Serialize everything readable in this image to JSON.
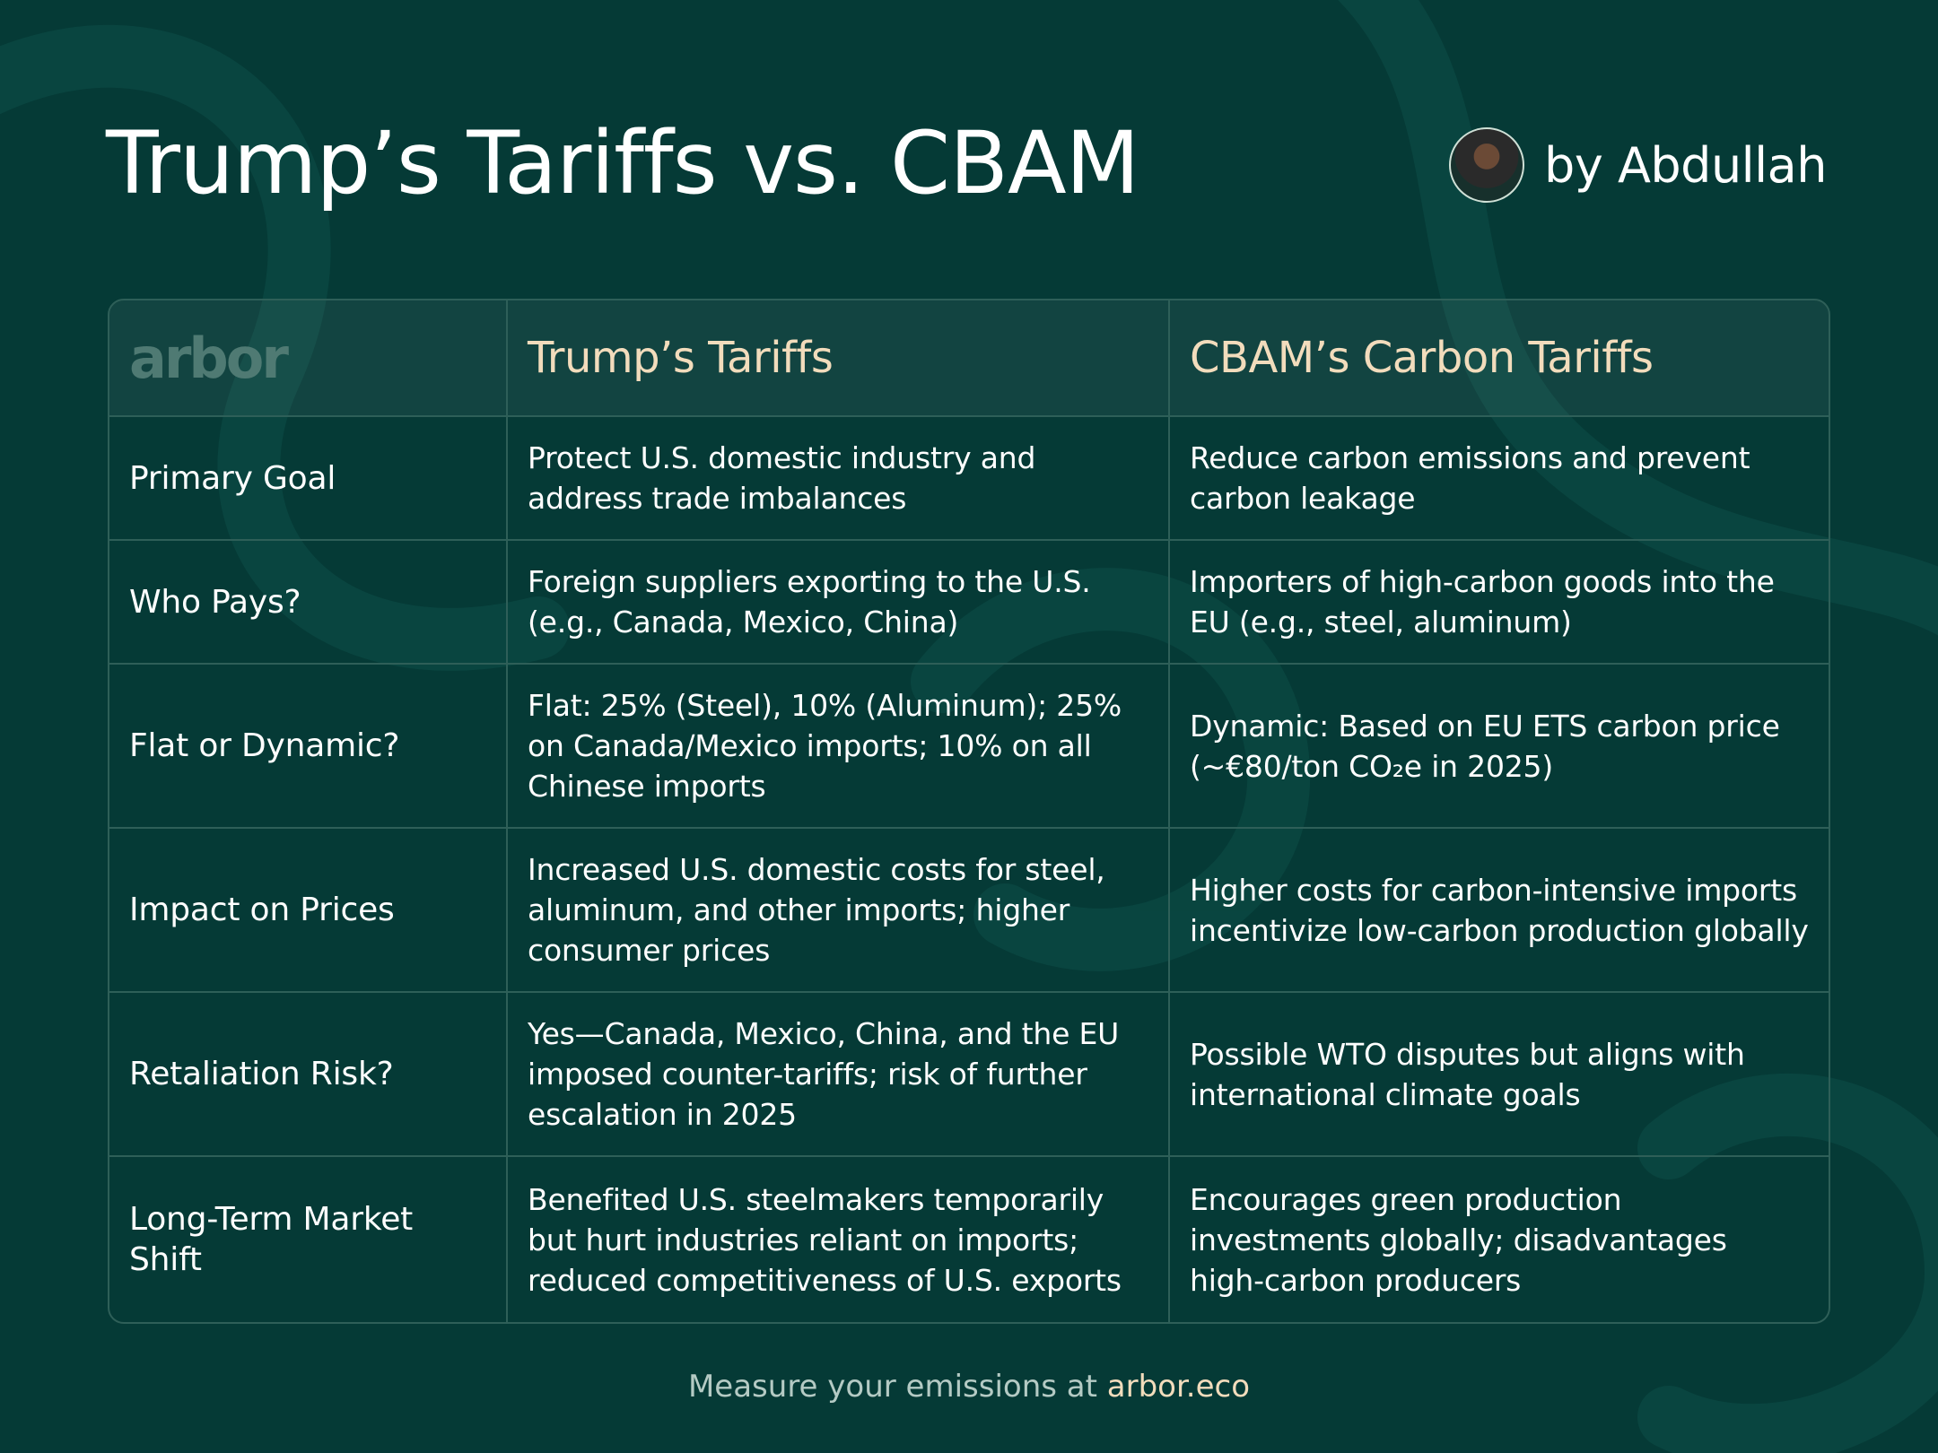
{
  "title": "Trump’s Tariffs vs. CBAM",
  "author": {
    "name": "by Abdullah"
  },
  "table": {
    "logo": "arbor",
    "headers": [
      "Trump’s Tariffs",
      "CBAM’s Carbon Tariffs"
    ],
    "rows": [
      {
        "label": "Primary Goal",
        "trump": "Protect U.S. domestic industry and address trade imbalances",
        "cbam": "Reduce carbon emissions and prevent carbon leakage"
      },
      {
        "label": "Who Pays?",
        "trump": "Foreign suppliers exporting to the U.S. (e.g., Canada, Mexico, China)",
        "cbam": "Importers of high-carbon goods into the EU (e.g., steel, aluminum)"
      },
      {
        "label": "Flat or Dynamic?",
        "trump": "Flat: 25% (Steel), 10% (Aluminum); 25% on Canada/Mexico imports; 10% on all Chinese imports",
        "cbam": "Dynamic: Based on EU ETS carbon price (~€80/ton CO₂e in 2025)"
      },
      {
        "label": "Impact on Prices",
        "trump": "Increased U.S. domestic costs for steel, aluminum, and other imports; higher consumer prices",
        "cbam": "Higher costs for carbon-intensive imports incentivize low-carbon production globally"
      },
      {
        "label": "Retaliation Risk?",
        "trump": "Yes—Canada, Mexico, China, and the EU imposed counter-tariffs; risk of further escalation in 2025",
        "cbam": "Possible WTO disputes but aligns with international climate goals"
      },
      {
        "label": "Long-Term Market Shift",
        "trump": "Benefited U.S. steelmakers temporarily but hurt industries reliant on imports; reduced competitiveness of U.S. exports",
        "cbam": "Encourages green production investments globally; disadvantages high-carbon producers"
      }
    ]
  },
  "footer": {
    "text": "Measure your emissions at ",
    "link": "arbor.eco"
  }
}
